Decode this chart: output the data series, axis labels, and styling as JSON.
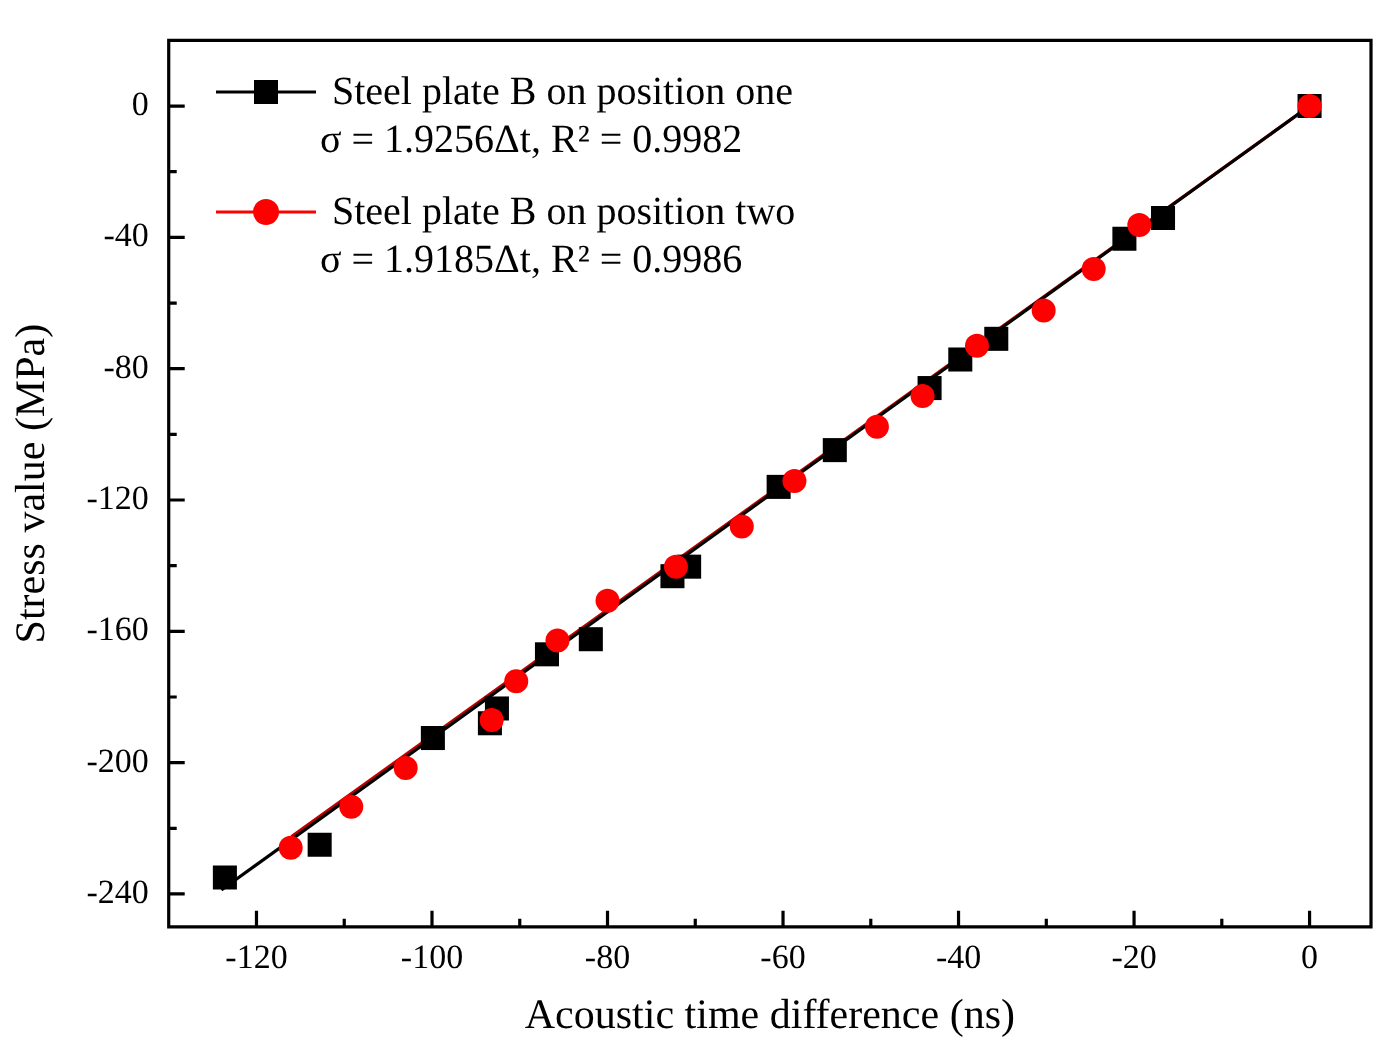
{
  "chart_data": {
    "type": "scatter",
    "xlabel": "Acoustic time difference (ns)",
    "ylabel": "Stress value (MPa)",
    "xlim": [
      -130,
      7
    ],
    "ylim": [
      -250,
      20
    ],
    "xticks": [
      -120,
      -100,
      -80,
      -60,
      -40,
      -20,
      0
    ],
    "yticks": [
      -240,
      -200,
      -160,
      -120,
      -80,
      -40,
      0
    ],
    "grid": false,
    "legend": "top left",
    "annotations": [
      "σ = 1.9256Δt,  R² = 0.9982",
      "σ = 1.9185Δt,  R² = 0.9986"
    ],
    "series": [
      {
        "name": "Steel plate B on position one",
        "color": "#000000",
        "type": "scatter",
        "marker": "square",
        "x": [
          -123.6,
          -112.8,
          -99.9,
          -93.4,
          -92.6,
          -86.9,
          -81.9,
          -72.6,
          -70.7,
          -60.5,
          -54.1,
          -43.3,
          -39.8,
          -35.7,
          -21.1,
          -16.7,
          0
        ],
        "values": [
          -235,
          -225,
          -192.5,
          -188,
          -183.5,
          -167,
          -162.4,
          -143.2,
          -140.3,
          -116,
          -104.8,
          -85.9,
          -77.2,
          -70.9,
          -40.4,
          -34.1,
          0
        ]
      },
      {
        "name": "Steel plate B on position two",
        "color": "#ff0000",
        "type": "scatter",
        "marker": "circle",
        "x": [
          -116.1,
          -109.2,
          -103,
          -93.2,
          -90.4,
          -85.7,
          -80,
          -72.2,
          -64.7,
          -58.7,
          -49.3,
          -44.1,
          -37.9,
          -30.3,
          -24.6,
          -19.4,
          0
        ],
        "values": [
          -225.9,
          -213.4,
          -201.6,
          -187,
          -175.2,
          -162.8,
          -150.7,
          -140.3,
          -128.1,
          -114.2,
          -97.7,
          -88.3,
          -73,
          -62.3,
          -49.6,
          -36.2,
          0
        ]
      },
      {
        "color": "#000000",
        "type": "line",
        "marker": "none",
        "x": [
          -124,
          0
        ],
        "values": [
          -238.8,
          0
        ]
      },
      {
        "color": "#c00000",
        "type": "line",
        "marker": "none",
        "x": [
          -116,
          0
        ],
        "values": [
          -222.5,
          0
        ]
      }
    ]
  }
}
